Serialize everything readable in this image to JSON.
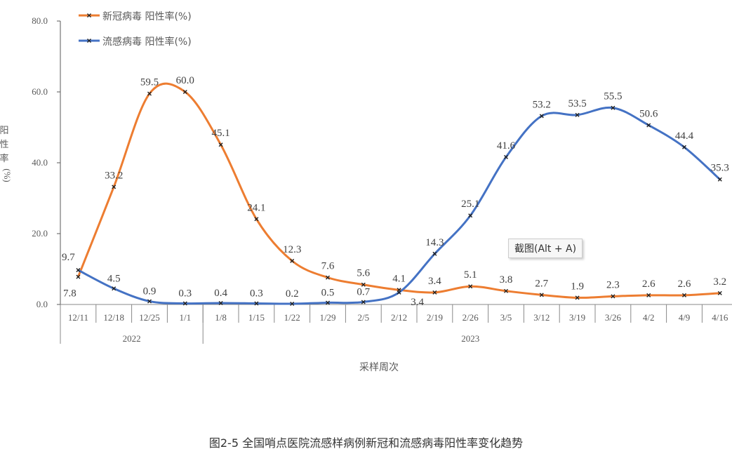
{
  "chart_data": {
    "type": "line",
    "smooth": true,
    "categories": [
      "12/11",
      "12/18",
      "12/25",
      "1/1",
      "1/8",
      "1/15",
      "1/22",
      "1/29",
      "2/5",
      "2/12",
      "2/19",
      "2/26",
      "3/5",
      "3/12",
      "3/19",
      "3/26",
      "4/2",
      "4/9",
      "4/16"
    ],
    "year_groups": [
      {
        "label": "2022",
        "count": 4
      },
      {
        "label": "2023",
        "count": 15
      }
    ],
    "series": [
      {
        "name": "新冠病毒 阳性率(%)",
        "color": "#ED7D31",
        "values": [
          7.8,
          33.2,
          59.5,
          60.0,
          45.1,
          24.1,
          12.3,
          7.6,
          5.6,
          4.1,
          3.4,
          5.1,
          3.8,
          2.7,
          1.9,
          2.3,
          2.6,
          2.6,
          3.2
        ]
      },
      {
        "name": "流感病毒 阳性率(%)",
        "color": "#4472C4",
        "values": [
          9.7,
          4.5,
          0.9,
          0.3,
          0.4,
          0.3,
          0.2,
          0.5,
          0.7,
          3.4,
          14.3,
          25.1,
          41.6,
          53.2,
          53.5,
          55.5,
          50.6,
          44.4,
          35.3
        ]
      }
    ],
    "yticks": [
      "0.0",
      "20.0",
      "40.0",
      "60.0",
      "80.0"
    ],
    "ylim": [
      0,
      80
    ],
    "ylabel": "阳性率(%)",
    "xlabel": "采样周次",
    "legend_position": "top-left",
    "grid": false
  },
  "caption": "图2-5 全国哨点医院流感样病例新冠和流感病毒阳性率变化趋势",
  "tooltip": "截图(Alt + A)"
}
